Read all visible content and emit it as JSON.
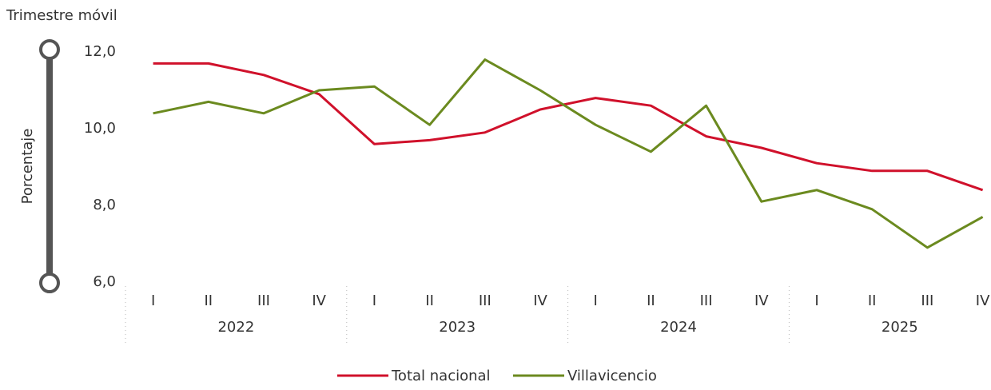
{
  "chart_data": {
    "type": "line",
    "title": "Trimestre móvil",
    "y_label": "Porcentaje",
    "categories": [
      "I",
      "II",
      "III",
      "IV",
      "I",
      "II",
      "III",
      "IV",
      "I",
      "II",
      "III",
      "IV",
      "I",
      "II",
      "III",
      "IV"
    ],
    "groups": [
      "2022",
      "2023",
      "2024",
      "2025"
    ],
    "series": [
      {
        "name": "Total nacional",
        "color": "#d0112b",
        "values": [
          11.7,
          11.7,
          11.4,
          10.9,
          9.6,
          9.7,
          9.9,
          10.5,
          10.8,
          10.6,
          9.8,
          9.5,
          9.1,
          8.9,
          8.9,
          8.4
        ]
      },
      {
        "name": "Villavicencio",
        "color": "#6b8a1f",
        "values": [
          10.4,
          10.7,
          10.4,
          11.0,
          11.1,
          10.1,
          11.8,
          11.0,
          10.1,
          9.4,
          10.6,
          8.1,
          8.4,
          7.9,
          6.9,
          7.7
        ]
      }
    ],
    "ylim": [
      6,
      12
    ],
    "yticks": [
      {
        "value": 6,
        "label": "6,0"
      },
      {
        "value": 8,
        "label": "8,0"
      },
      {
        "value": 10,
        "label": "10,0"
      },
      {
        "value": 12,
        "label": "12,0"
      }
    ],
    "grid": false,
    "legend": "bottom"
  }
}
